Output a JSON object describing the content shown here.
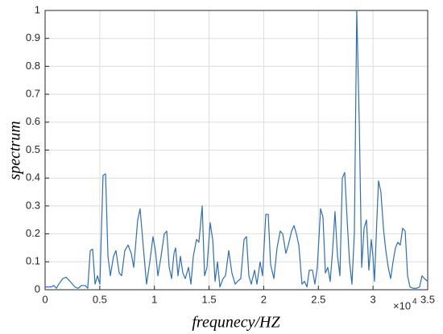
{
  "chart_data": {
    "type": "line",
    "xlabel": "frequnecy/HZ",
    "ylabel": "spectrum",
    "x_exponent_base": "×10",
    "x_exponent": "4",
    "color": "#2f6eb5",
    "grid": true,
    "xlim": [
      0,
      35000
    ],
    "ylim": [
      0,
      1
    ],
    "xticks": [
      0,
      {
        "value": 5000,
        "label": "0.5"
      },
      {
        "value": 10000,
        "label": "1"
      },
      {
        "value": 15000,
        "label": "1.5"
      },
      {
        "value": 20000,
        "label": "2"
      },
      {
        "value": 25000,
        "label": "2.5"
      },
      {
        "value": 30000,
        "label": "3"
      },
      {
        "value": 35000,
        "label": "3.5"
      }
    ],
    "yticks": [
      0,
      0.1,
      0.2,
      0.3,
      0.4,
      0.5,
      0.6,
      0.7,
      0.8,
      0.9,
      1
    ],
    "x": [
      0,
      520,
      810,
      1030,
      1250,
      1620,
      1920,
      2280,
      2730,
      3020,
      3320,
      3680,
      3900,
      4130,
      4350,
      4570,
      4790,
      5010,
      5300,
      5530,
      5750,
      5970,
      6260,
      6480,
      6780,
      7000,
      7290,
      7590,
      7880,
      8110,
      8470,
      8690,
      8990,
      9280,
      9580,
      9870,
      10090,
      10320,
      10610,
      10900,
      11130,
      11350,
      11570,
      11790,
      11940,
      12160,
      12380,
      12600,
      12820,
      13120,
      13340,
      13560,
      13850,
      14070,
      14370,
      14590,
      14810,
      15100,
      15330,
      15550,
      15770,
      15990,
      16280,
      16500,
      16800,
      17090,
      17390,
      17610,
      17900,
      18200,
      18420,
      18640,
      18860,
      19160,
      19380,
      19670,
      19890,
      20190,
      20410,
      20630,
      20930,
      21220,
      21510,
      21740,
      22030,
      22250,
      22550,
      22770,
      22990,
      23210,
      23500,
      23730,
      23950,
      24170,
      24460,
      24680,
      24900,
      25200,
      25420,
      25640,
      25860,
      26080,
      26300,
      26520,
      26750,
      26970,
      27190,
      27410,
      27630,
      27850,
      28070,
      28290,
      28510,
      28740,
      28960,
      29180,
      29400,
      29620,
      29840,
      29990,
      30130,
      30360,
      30500,
      30720,
      30950,
      31170,
      31390,
      31610,
      31830,
      32050,
      32270,
      32490,
      32710,
      32940,
      33160,
      33380,
      33670,
      33970,
      34260,
      34480,
      34700,
      35000
    ],
    "values": [
      0.01,
      0.01,
      0.015,
      0.005,
      0.02,
      0.04,
      0.045,
      0.03,
      0.01,
      0.005,
      0.015,
      0.015,
      0.005,
      0.14,
      0.145,
      0.02,
      0.05,
      0.02,
      0.41,
      0.415,
      0.12,
      0.05,
      0.12,
      0.14,
      0.06,
      0.05,
      0.14,
      0.16,
      0.13,
      0.08,
      0.25,
      0.29,
      0.15,
      0.02,
      0.1,
      0.19,
      0.14,
      0.05,
      0.12,
      0.2,
      0.21,
      0.08,
      0.04,
      0.13,
      0.15,
      0.05,
      0.12,
      0.06,
      0.04,
      0.08,
      0.02,
      0.12,
      0.18,
      0.17,
      0.3,
      0.05,
      0.08,
      0.24,
      0.18,
      0.03,
      0.1,
      0.01,
      0.04,
      0.05,
      0.14,
      0.06,
      0.02,
      0.03,
      0.04,
      0.18,
      0.19,
      0.05,
      0.02,
      0.07,
      0.02,
      0.1,
      0.05,
      0.27,
      0.27,
      0.09,
      0.04,
      0.15,
      0.21,
      0.2,
      0.13,
      0.16,
      0.21,
      0.23,
      0.2,
      0.16,
      0.02,
      0.03,
      0.01,
      0.07,
      0.07,
      0.02,
      0.08,
      0.29,
      0.26,
      0.06,
      0.08,
      0.03,
      0.14,
      0.28,
      0.12,
      0.05,
      0.4,
      0.42,
      0.25,
      0.1,
      0.02,
      0.2,
      1.0,
      0.6,
      0.08,
      0.22,
      0.25,
      0.07,
      0.18,
      0.12,
      0.03,
      0.26,
      0.39,
      0.35,
      0.22,
      0.14,
      0.08,
      0.04,
      0.1,
      0.15,
      0.17,
      0.16,
      0.22,
      0.21,
      0.05,
      0.01,
      0.005,
      0.005,
      0.01,
      0.05,
      0.04,
      0.03
    ]
  }
}
